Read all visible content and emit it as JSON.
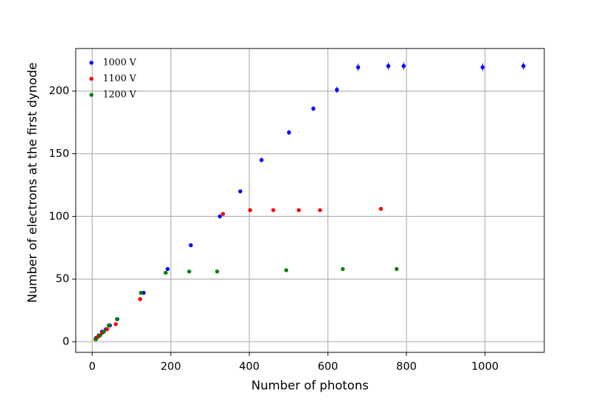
{
  "chart_data": {
    "type": "scatter",
    "x_label": "Number of photons",
    "y_label": "Number of electrons at the first dynode",
    "xlim": [
      -42,
      1151
    ],
    "ylim": [
      -8.5,
      234
    ],
    "xticks": [
      0,
      200,
      400,
      600,
      800,
      1000
    ],
    "yticks": [
      0,
      50,
      100,
      150,
      200
    ],
    "grid": true,
    "legend_position": "upper-left",
    "series": [
      {
        "name": "1000 V",
        "color": "#0000ff",
        "x": [
          10,
          17,
          25,
          35,
          45,
          64,
          131,
          192,
          251,
          325,
          377,
          431,
          501,
          563,
          623,
          677,
          754,
          793,
          994,
          1098
        ],
        "values": [
          3,
          5,
          8,
          10,
          13,
          18,
          39,
          58,
          77,
          100,
          120,
          145,
          167,
          186,
          201,
          219,
          220,
          220,
          219,
          220
        ],
        "errors": [
          1,
          1,
          1,
          1,
          1,
          1,
          1,
          1,
          1,
          1,
          1.5,
          2,
          2,
          2,
          2.5,
          3,
          3,
          3,
          3,
          3
        ]
      },
      {
        "name": "1100 V",
        "color": "#ff0000",
        "x": [
          8,
          15,
          25,
          38,
          60,
          122,
          333,
          402,
          461,
          526,
          580,
          735
        ],
        "values": [
          2,
          4,
          7,
          10,
          14,
          34,
          102,
          105,
          105,
          105,
          105,
          106
        ]
      },
      {
        "name": "1200 V",
        "color": "#008000",
        "x": [
          10,
          20,
          30,
          42,
          63,
          124,
          187,
          247,
          318,
          494,
          638,
          775
        ],
        "values": [
          2,
          5,
          8,
          13,
          18,
          39,
          55,
          56,
          56,
          57,
          58,
          58
        ]
      }
    ]
  }
}
